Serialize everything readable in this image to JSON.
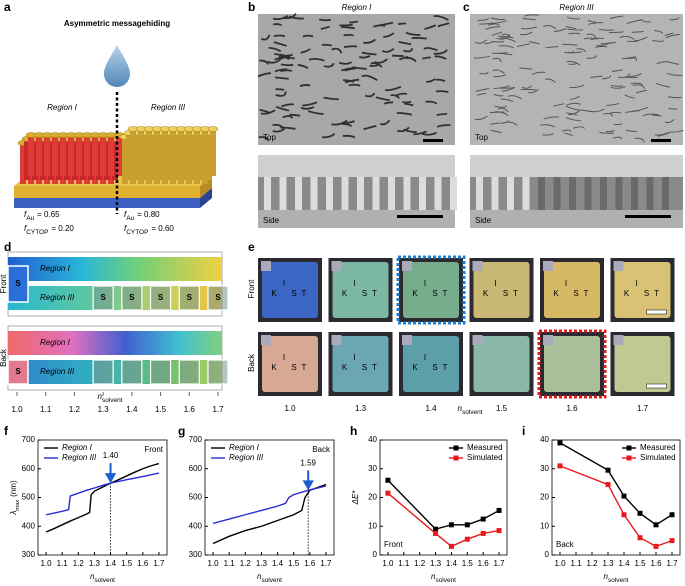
{
  "panel_labels": [
    "a",
    "b",
    "c",
    "d",
    "e",
    "f",
    "g",
    "h",
    "i"
  ],
  "panel_a": {
    "title": "Asymmetric messagehiding",
    "left_region": "Region I",
    "right_region": "Region III",
    "left_fractions": [
      {
        "symbol": "f",
        "subscript": "Au",
        "rest": "= 0.65"
      },
      {
        "symbol": "f",
        "subscript": "CYTOP",
        "rest": "= 0.20"
      }
    ],
    "right_fractions": [
      {
        "symbol": "f",
        "subscript": "Au",
        "rest": "= 0.80"
      },
      {
        "symbol": "f",
        "subscript": "CYTOP",
        "rest": "= 0.60"
      }
    ]
  },
  "panel_b": {
    "title": "Region I",
    "views": [
      "Top",
      "Side"
    ]
  },
  "panel_c": {
    "title": "Region III",
    "views": [
      "Top",
      "Side"
    ]
  },
  "panel_d": {
    "sides": [
      "Front",
      "Back"
    ],
    "regions": [
      "Region I",
      "Region III"
    ],
    "letter": "S",
    "xticks": [
      {
        "value": 1,
        "label": "1.0"
      },
      1.1,
      1.2,
      1.3,
      1.4,
      1.5,
      1.6,
      1.7
    ],
    "xlabel": {
      "symbol": "n",
      "subscript": "solvent"
    }
  },
  "panel_e": {
    "sides": [
      "Front",
      "Back"
    ],
    "logo": [
      "K",
      "I",
      "S",
      "T"
    ],
    "categories": [
      "1.0",
      "1.3",
      "1.4",
      "1.5",
      "1.6",
      "1.7"
    ],
    "xlabel": {
      "symbol": "n",
      "subscript": "solvent"
    },
    "front_colors": [
      "#3b66c4",
      "#7cb7a4",
      "#77ad8c",
      "#c9b873",
      "#d6b865",
      "#d9c275"
    ],
    "back_colors": [
      "#d7a894",
      "#6ba7b2",
      "#5c9fa9",
      "#8ab8a8",
      "#a9c19a",
      "#c1c892"
    ]
  },
  "chart_data": [
    {
      "type": "line",
      "panel_text": "Front",
      "xlabel": {
        "symbol": "n",
        "subscript": "solvent"
      },
      "ylabel": {
        "symbol": "λ",
        "subscript": "max",
        "rest": "(nm)"
      },
      "xlim": [
        0.95,
        1.75
      ],
      "xticks": [
        {
          "value": 1,
          "label": "1.0"
        },
        1.1,
        1.2,
        1.3,
        1.4,
        1.5,
        1.6,
        1.7
      ],
      "ylim": [
        300,
        700
      ],
      "yticks": [
        300,
        400,
        500,
        600,
        700
      ],
      "legend": "upper left",
      "series": [
        {
          "name": "Region I",
          "color": "#000000",
          "x": [
            1.0,
            1.05,
            1.1,
            1.15,
            1.2,
            1.25,
            1.27,
            1.28,
            1.3,
            1.35,
            1.4,
            1.45,
            1.5,
            1.55,
            1.6,
            1.65,
            1.7
          ],
          "values": [
            380,
            392,
            405,
            418,
            430,
            442,
            448,
            510,
            522,
            536,
            550,
            562,
            575,
            588,
            600,
            610,
            618
          ]
        },
        {
          "name": "Region III",
          "color": "#2b2bd6",
          "x": [
            1.0,
            1.05,
            1.1,
            1.14,
            1.15,
            1.2,
            1.25,
            1.3,
            1.35,
            1.4,
            1.5,
            1.6,
            1.7
          ],
          "values": [
            440,
            446,
            452,
            458,
            505,
            515,
            525,
            533,
            542,
            550,
            562,
            573,
            585
          ]
        }
      ],
      "annotation": {
        "label": "1.40",
        "x": 1.4,
        "y": 550
      }
    },
    {
      "type": "line",
      "panel_text": "Back",
      "xlabel": {
        "symbol": "n",
        "subscript": "solvent"
      },
      "xlim": [
        0.95,
        1.75
      ],
      "xticks": [
        {
          "value": 1,
          "label": "1.0"
        },
        1.1,
        1.2,
        1.3,
        1.4,
        1.5,
        1.6,
        1.7
      ],
      "ylim": [
        300,
        700
      ],
      "yticks": [
        300,
        400,
        500,
        600,
        700
      ],
      "legend": "upper left",
      "series": [
        {
          "name": "Region I",
          "color": "#000000",
          "x": [
            1.0,
            1.1,
            1.2,
            1.3,
            1.4,
            1.5,
            1.55,
            1.57,
            1.6,
            1.65,
            1.7
          ],
          "values": [
            340,
            365,
            385,
            400,
            420,
            440,
            455,
            500,
            525,
            535,
            545
          ]
        },
        {
          "name": "Region III",
          "color": "#2b2bd6",
          "x": [
            1.0,
            1.1,
            1.2,
            1.3,
            1.4,
            1.45,
            1.47,
            1.5,
            1.59,
            1.7
          ],
          "values": [
            410,
            425,
            440,
            455,
            470,
            480,
            500,
            510,
            525,
            540
          ]
        }
      ],
      "annotation": {
        "label": "1.59",
        "x": 1.59,
        "y": 525
      }
    },
    {
      "type": "line",
      "markers": true,
      "panel_text": "Front",
      "xlabel": {
        "symbol": "n",
        "subscript": "solvent"
      },
      "ylabel": "ΔE*",
      "xlim": [
        0.95,
        1.75
      ],
      "xticks": [
        {
          "value": 1,
          "label": "1.0"
        },
        1.1,
        1.2,
        1.3,
        1.4,
        1.5,
        1.6,
        1.7
      ],
      "ylim": [
        0,
        40
      ],
      "yticks": [
        0,
        10,
        20,
        30,
        40
      ],
      "legend": "upper right",
      "series": [
        {
          "name": "Measured",
          "color": "#000000",
          "x": [
            1.0,
            1.3,
            1.4,
            1.5,
            1.6,
            1.7
          ],
          "values": [
            26,
            9,
            10.5,
            10.5,
            12.5,
            15.5
          ]
        },
        {
          "name": "Simulated",
          "color": "#e8191c",
          "x": [
            1.0,
            1.3,
            1.4,
            1.5,
            1.6,
            1.7
          ],
          "values": [
            21.5,
            7.5,
            3,
            5.5,
            7.5,
            8.5
          ]
        }
      ]
    },
    {
      "type": "line",
      "markers": true,
      "panel_text": "Back",
      "xlabel": {
        "symbol": "n",
        "subscript": "solvent"
      },
      "xlim": [
        0.95,
        1.75
      ],
      "xticks": [
        {
          "value": 1,
          "label": "1.0"
        },
        1.1,
        1.2,
        1.3,
        1.4,
        1.5,
        1.6,
        1.7
      ],
      "ylim": [
        0,
        40
      ],
      "yticks": [
        0,
        10,
        20,
        30,
        40
      ],
      "legend": "upper right",
      "series": [
        {
          "name": "Measured",
          "color": "#000000",
          "x": [
            1.0,
            1.3,
            1.4,
            1.5,
            1.6,
            1.7
          ],
          "values": [
            39,
            29.5,
            20.5,
            14.5,
            10.5,
            14
          ]
        },
        {
          "name": "Simulated",
          "color": "#e8191c",
          "x": [
            1.0,
            1.3,
            1.4,
            1.5,
            1.6,
            1.7
          ],
          "values": [
            31,
            24.5,
            14,
            6,
            3,
            5
          ]
        }
      ]
    }
  ]
}
